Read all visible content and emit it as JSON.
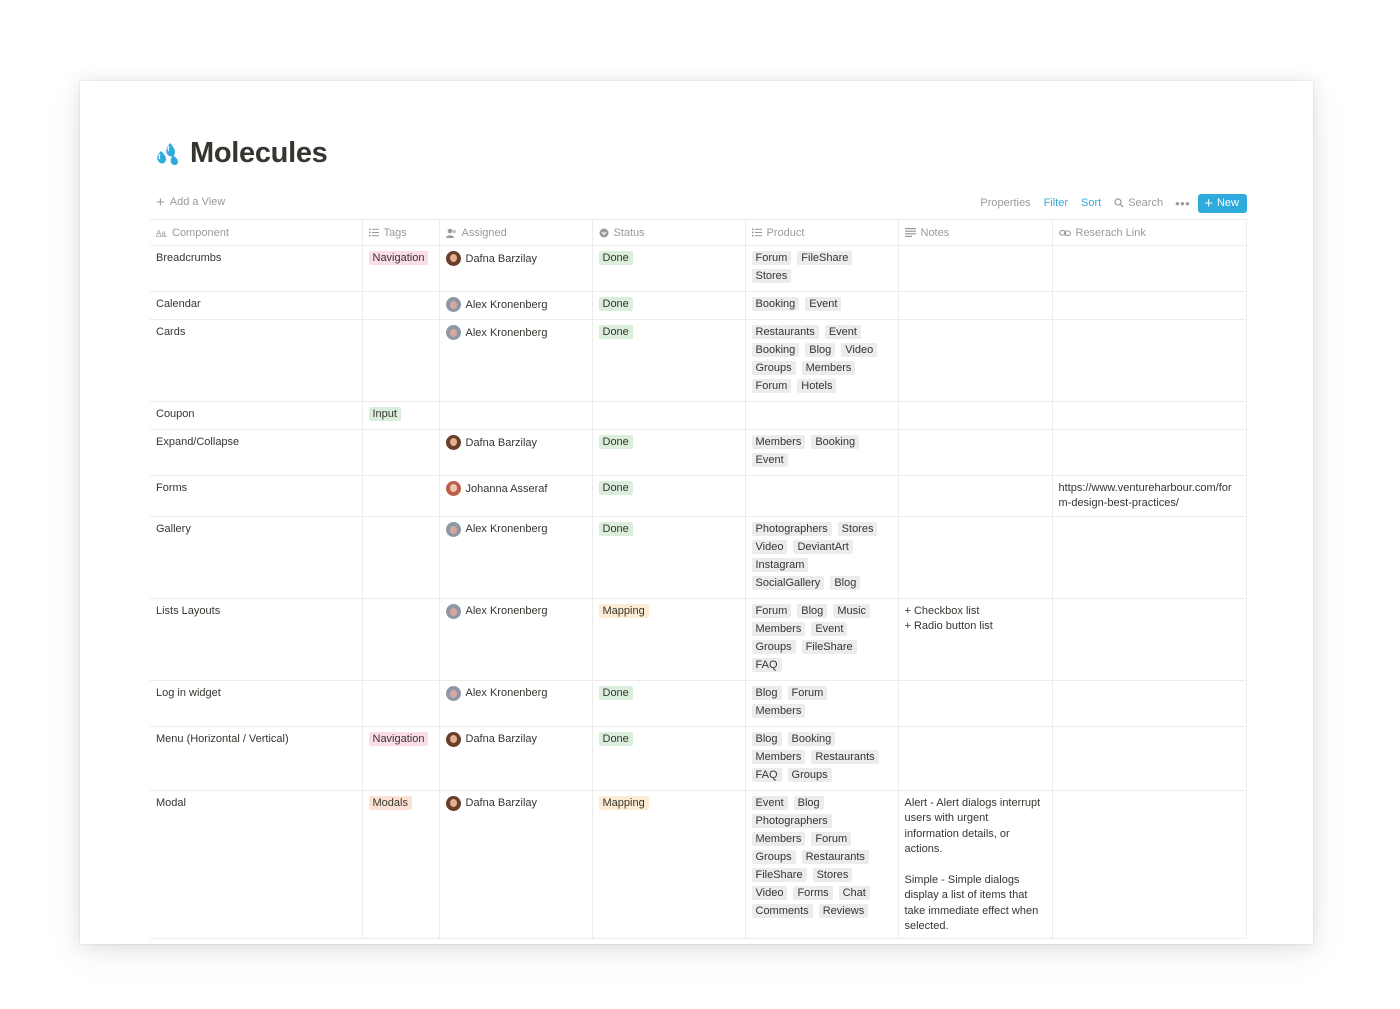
{
  "page": {
    "title": "Molecules",
    "icon": "water-drops-icon"
  },
  "toolbar": {
    "add_view": "Add a View",
    "properties": "Properties",
    "filter": "Filter",
    "sort": "Sort",
    "search": "Search",
    "more": "•••",
    "new_label": "New",
    "accent": "#2eaadc"
  },
  "columns": {
    "component": "Component",
    "tags": "Tags",
    "assigned": "Assigned",
    "status": "Status",
    "product": "Product",
    "notes": "Notes",
    "research": "Reserach Link"
  },
  "rows": [
    {
      "component": "Breadcrumbs",
      "tag": "Navigation",
      "assigned": "Dafna Barzilay",
      "status": "Done",
      "products": [
        "Forum",
        "FileShare",
        "Stores"
      ],
      "notes": "",
      "link": ""
    },
    {
      "component": "Calendar",
      "tag": "",
      "assigned": "Alex Kronenberg",
      "status": "Done",
      "products": [
        "Booking",
        "Event"
      ],
      "notes": "",
      "link": ""
    },
    {
      "component": "Cards",
      "tag": "",
      "assigned": "Alex Kronenberg",
      "status": "Done",
      "products": [
        "Restaurants",
        "Event",
        "Booking",
        "Blog",
        "Video",
        "Groups",
        "Members",
        "Forum",
        "Hotels"
      ],
      "notes": "",
      "link": ""
    },
    {
      "component": "Coupon",
      "tag": "Input",
      "assigned": "",
      "status": "",
      "products": [],
      "notes": "",
      "link": ""
    },
    {
      "component": "Expand/Collapse",
      "tag": "",
      "assigned": "Dafna Barzilay",
      "status": "Done",
      "products": [
        "Members",
        "Booking",
        "Event"
      ],
      "notes": "",
      "link": ""
    },
    {
      "component": "Forms",
      "tag": "",
      "assigned": "Johanna Asseraf",
      "status": "Done",
      "products": [],
      "notes": "",
      "link": "https://www.ventureharbour.com/form-design-best-practices/"
    },
    {
      "component": "Gallery",
      "tag": "",
      "assigned": "Alex Kronenberg",
      "status": "Done",
      "products": [
        "Photographers",
        "Stores",
        "Video",
        "DeviantArt",
        "Instagram",
        "SocialGallery",
        "Blog"
      ],
      "notes": "",
      "link": ""
    },
    {
      "component": "Lists Layouts",
      "tag": "",
      "assigned": "Alex Kronenberg",
      "status": "Mapping",
      "products": [
        "Forum",
        "Blog",
        "Music",
        "Members",
        "Event",
        "Groups",
        "FileShare",
        "FAQ"
      ],
      "notes": "+ Checkbox list\n+ Radio button list",
      "link": ""
    },
    {
      "component": "Log in widget",
      "tag": "",
      "assigned": "Alex Kronenberg",
      "status": "Done",
      "products": [
        "Blog",
        "Forum",
        "Members"
      ],
      "notes": "",
      "link": ""
    },
    {
      "component": "Menu (Horizontal / Vertical)",
      "tag": "Navigation",
      "assigned": "Dafna Barzilay",
      "status": "Done",
      "products": [
        "Blog",
        "Booking",
        "Members",
        "Restaurants",
        "FAQ",
        "Groups"
      ],
      "notes": "",
      "link": ""
    },
    {
      "component": "Modal",
      "tag": "Modals",
      "assigned": "Dafna Barzilay",
      "status": "Mapping",
      "products": [
        "Event",
        "Blog",
        "Photographers",
        "Members",
        "Forum",
        "Groups",
        "Restaurants",
        "FileShare",
        "Stores",
        "Video",
        "Forms",
        "Chat",
        "Comments",
        "Reviews"
      ],
      "notes": "Alert - Alert dialogs interrupt users with urgent information details, or actions.\n\nSimple  - Simple dialogs display a list of items that take immediate effect when selected.",
      "link": ""
    }
  ],
  "colors": {
    "tag_navigation": "#fbdde9",
    "tag_input": "#dbeddb",
    "tag_modals": "#fde1d4",
    "status_done": "#dbeddb",
    "status_mapping": "#fdebd4",
    "product_tag": "#ebeced"
  }
}
